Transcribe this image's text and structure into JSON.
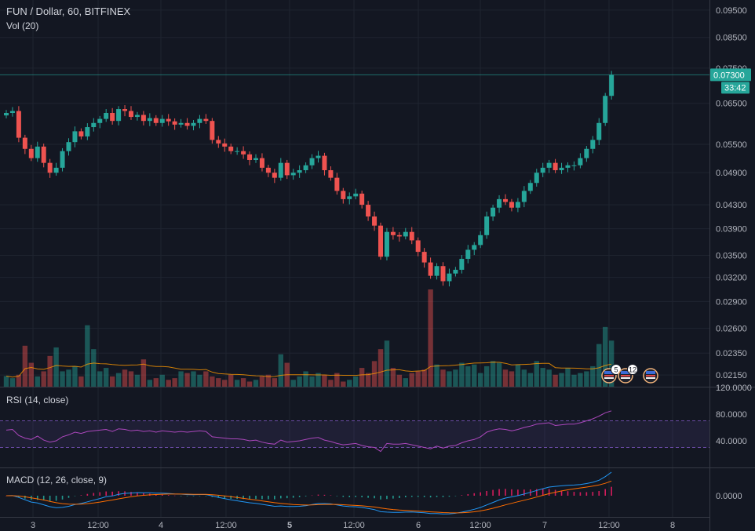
{
  "header": {
    "symbol_line": "FUN / Dollar, 60, BITFINEX",
    "volume_line": "Vol (20)"
  },
  "rsi_pane": {
    "label": "RSI (14, close)"
  },
  "macd_pane": {
    "label": "MACD (12, 26, close, 9)"
  },
  "price_tags": {
    "last_price": "0.07300",
    "countdown": "33:42"
  },
  "event_badges": [
    {
      "kind": "economic-event-us",
      "count": "5"
    },
    {
      "kind": "economic-event-us",
      "count": "12"
    },
    {
      "kind": "economic-event-us",
      "count": ""
    }
  ],
  "colors": {
    "background": "#131722",
    "up": "#26a69a",
    "down": "#ef5350",
    "rsi_line": "#ab47bc",
    "macd_line": "#2196f3",
    "signal_line": "#ff6d00",
    "volume_ma": "#ff9800",
    "last_price_tag": "#26a69a"
  },
  "chart_data": [
    {
      "type": "candlestick",
      "title": "FUN / Dollar, 60, BITFINEX",
      "x_tick_labels": [
        "3",
        "12:00",
        "4",
        "12:00",
        "5",
        "12:00",
        "6",
        "12:00",
        "7",
        "12:00",
        "8"
      ],
      "y_tick_labels": [
        "0.09500",
        "0.08500",
        "0.07500",
        "0.06500",
        "0.05500",
        "0.04900",
        "0.04300",
        "0.03900",
        "0.03500",
        "0.03200",
        "0.02900",
        "0.02600",
        "0.02350",
        "0.02150"
      ],
      "y_scale": "log",
      "ylim": [
        0.0205,
        0.099
      ],
      "last_price": 0.073,
      "grid": true,
      "close_series": [
        0.0625,
        0.063,
        0.0565,
        0.054,
        0.052,
        0.0545,
        0.051,
        0.049,
        0.05,
        0.0535,
        0.0555,
        0.058,
        0.0568,
        0.059,
        0.06,
        0.061,
        0.0625,
        0.0605,
        0.0635,
        0.063,
        0.0615,
        0.062,
        0.0605,
        0.0612,
        0.06,
        0.061,
        0.0604,
        0.0596,
        0.06,
        0.0593,
        0.06,
        0.061,
        0.0605,
        0.056,
        0.0552,
        0.0545,
        0.0535,
        0.0535,
        0.0528,
        0.0516,
        0.052,
        0.05,
        0.049,
        0.048,
        0.051,
        0.0485,
        0.049,
        0.0495,
        0.0505,
        0.052,
        0.0525,
        0.0495,
        0.048,
        0.0455,
        0.044,
        0.0445,
        0.045,
        0.043,
        0.041,
        0.0395,
        0.0348,
        0.0385,
        0.038,
        0.0378,
        0.0385,
        0.0372,
        0.0355,
        0.034,
        0.0322,
        0.0335,
        0.0315,
        0.0325,
        0.033,
        0.0345,
        0.0358,
        0.0365,
        0.038,
        0.041,
        0.0425,
        0.044,
        0.0435,
        0.0425,
        0.0435,
        0.0455,
        0.047,
        0.049,
        0.05,
        0.051,
        0.0495,
        0.05,
        0.0505,
        0.0505,
        0.052,
        0.054,
        0.056,
        0.06,
        0.067,
        0.073
      ],
      "series": [
        {
          "name": "Vol (20)",
          "values": [
            620,
            500,
            700,
            2400,
            1400,
            600,
            900,
            1800,
            2300,
            900,
            1000,
            1200,
            600,
            3600,
            2200,
            900,
            1100,
            600,
            800,
            1000,
            900,
            700,
            1600,
            400,
            500,
            700,
            400,
            500,
            900,
            800,
            900,
            700,
            900,
            600,
            500,
            400,
            700,
            400,
            500,
            300,
            400,
            600,
            700,
            500,
            1900,
            1400,
            400,
            600,
            900,
            600,
            800,
            700,
            400,
            800,
            300,
            400,
            600,
            1100,
            800,
            1500,
            2200,
            2700,
            1100,
            700,
            500,
            800,
            900,
            1000,
            5700,
            1300,
            1000,
            900,
            1000,
            1400,
            1200,
            1300,
            800,
            1200,
            1500,
            1400,
            1000,
            900,
            1300,
            1000,
            800,
            1500,
            1100,
            1000,
            700,
            800,
            1100,
            700,
            800,
            900,
            1200,
            2500,
            3500,
            2700
          ]
        },
        {
          "name": "RSI (14, close)",
          "values": [
            56,
            57,
            48,
            44,
            42,
            47,
            41,
            38,
            40,
            46,
            49,
            53,
            51,
            54,
            55,
            56,
            57,
            54,
            58,
            57,
            55,
            56,
            54,
            55,
            53,
            55,
            54,
            53,
            54,
            53,
            54,
            55,
            54,
            46,
            45,
            44,
            43,
            43,
            42,
            40,
            41,
            38,
            36,
            35,
            41,
            38,
            39,
            40,
            42,
            44,
            45,
            41,
            39,
            36,
            34,
            35,
            36,
            33,
            31,
            30,
            24,
            36,
            35,
            35,
            36,
            34,
            32,
            30,
            28,
            32,
            29,
            32,
            33,
            37,
            40,
            42,
            46,
            53,
            56,
            58,
            57,
            55,
            57,
            60,
            62,
            65,
            66,
            67,
            63,
            64,
            65,
            65,
            67,
            70,
            73,
            77,
            82,
            85
          ]
        }
      ],
      "rsi_ylim": [
        0,
        120
      ],
      "rsi_tick_labels": [
        "120.0000",
        "80.0000",
        "40.0000"
      ],
      "rsi_band": [
        30,
        70
      ],
      "macd_tick_labels": [
        "0.0000"
      ]
    }
  ]
}
